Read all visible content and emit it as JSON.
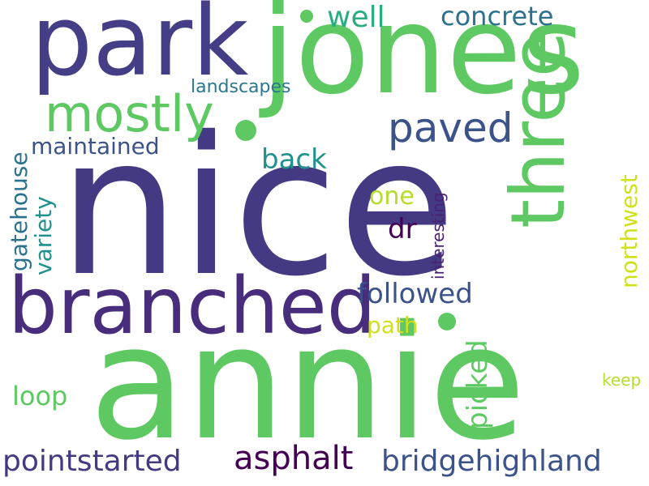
{
  "word_cloud": {
    "words": [
      {
        "text": "nice",
        "color": "#443983"
      },
      {
        "text": "annie",
        "color": "#5ec962"
      },
      {
        "text": "jones",
        "color": "#5ec962"
      },
      {
        "text": "park",
        "color": "#433e85"
      },
      {
        "text": "branched",
        "color": "#472d7b"
      },
      {
        "text": "three",
        "color": "#5ec962"
      },
      {
        "text": "mostly",
        "color": "#5ec962"
      },
      {
        "text": "paved",
        "color": "#3b528b"
      },
      {
        "text": "concrete",
        "color": "#2c728e"
      },
      {
        "text": "well",
        "color": "#27ad81"
      },
      {
        "text": "landscapes",
        "color": "#2a788e"
      },
      {
        "text": "maintained",
        "color": "#3b528b"
      },
      {
        "text": "gatehouse",
        "color": "#2c728e"
      },
      {
        "text": "variety",
        "color": "#21918c"
      },
      {
        "text": "back",
        "color": "#21918c"
      },
      {
        "text": "one",
        "color": "#b5de2b"
      },
      {
        "text": "dr",
        "color": "#440154"
      },
      {
        "text": "interesting",
        "color": "#482173"
      },
      {
        "text": "northwest",
        "color": "#d0e11c"
      },
      {
        "text": "followed",
        "color": "#3b528b"
      },
      {
        "text": "path",
        "color": "#d0e11c"
      },
      {
        "text": "picked",
        "color": "#5ec962"
      },
      {
        "text": "loop",
        "color": "#5ec962"
      },
      {
        "text": "keep",
        "color": "#b5de2b"
      },
      {
        "text": "pointstarted",
        "color": "#443983"
      },
      {
        "text": "asphalt",
        "color": "#440154"
      },
      {
        "text": "bridgehighland",
        "color": "#3b528b"
      }
    ],
    "dots": [
      {
        "color": "#5ec962"
      },
      {
        "color": "#5ec962"
      },
      {
        "color": "#5ec962"
      }
    ]
  }
}
